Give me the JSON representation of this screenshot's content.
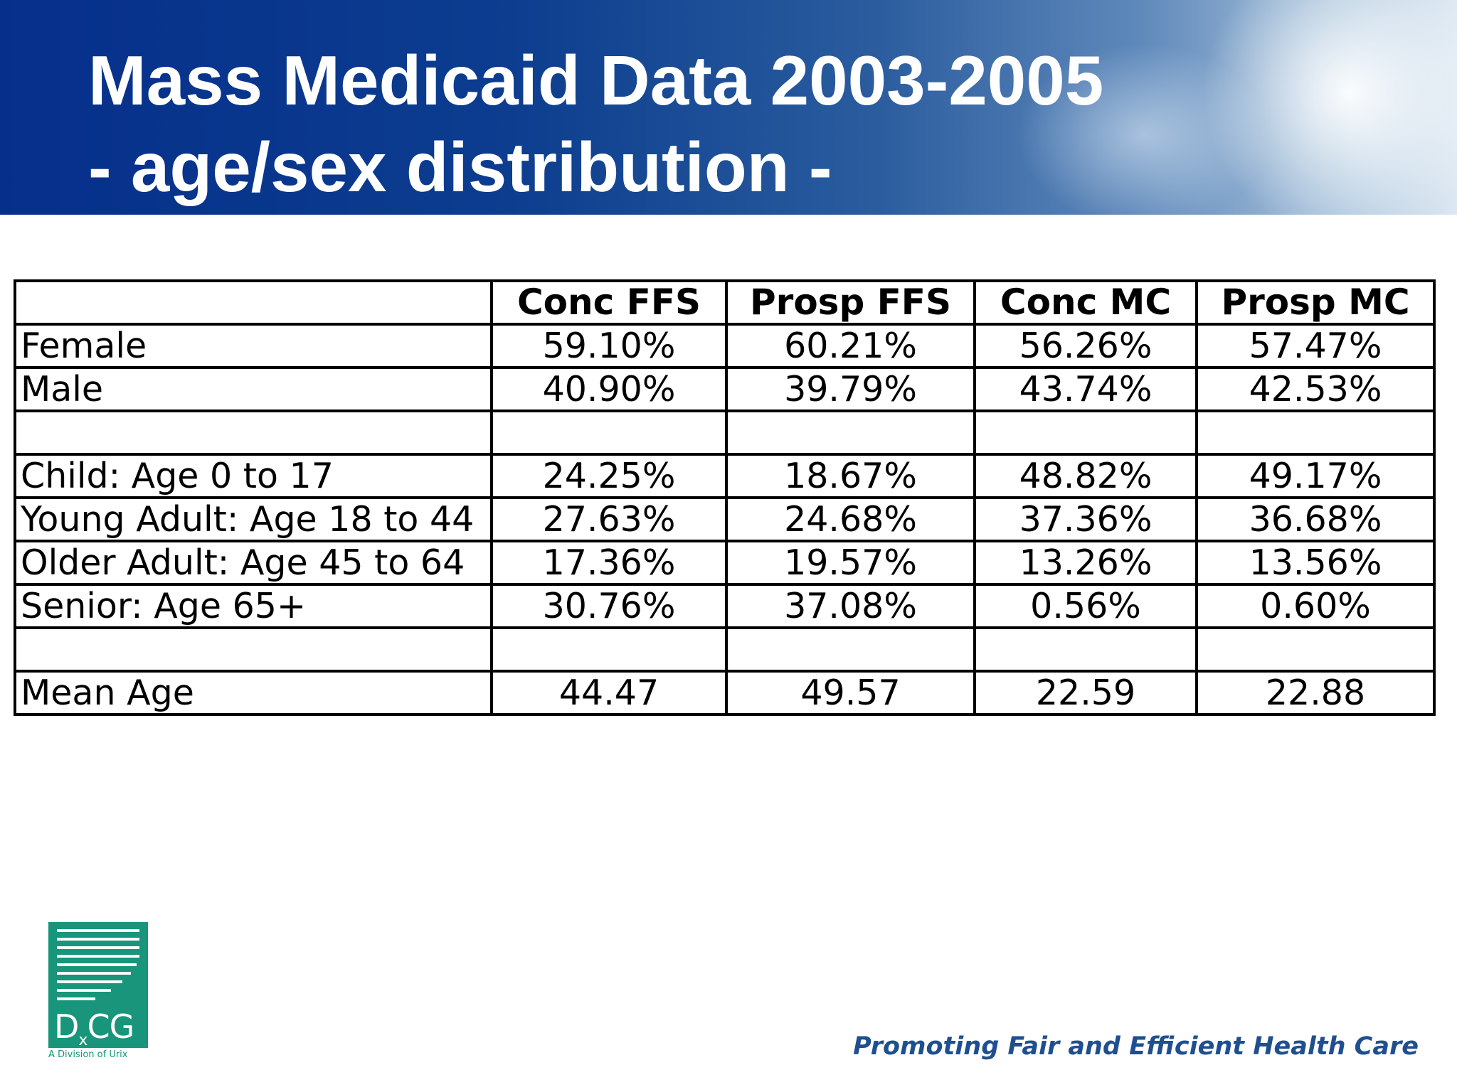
{
  "title": {
    "line1": "Mass Medicaid Data 2003-2005",
    "line2": "- age/sex distribution -"
  },
  "table": {
    "headers": [
      "",
      "Conc FFS",
      "Prosp FFS",
      "Conc MC",
      "Prosp MC"
    ],
    "rows": [
      {
        "label": "Female",
        "values": [
          "59.10%",
          "60.21%",
          "56.26%",
          "57.47%"
        ]
      },
      {
        "label": "Male",
        "values": [
          "40.90%",
          "39.79%",
          "43.74%",
          "42.53%"
        ]
      },
      {
        "label": "",
        "values": [
          "",
          "",
          "",
          ""
        ]
      },
      {
        "label": "Child: Age 0 to 17",
        "values": [
          "24.25%",
          "18.67%",
          "48.82%",
          "49.17%"
        ]
      },
      {
        "label": "Young Adult: Age 18 to 44",
        "values": [
          "27.63%",
          "24.68%",
          "37.36%",
          "36.68%"
        ]
      },
      {
        "label": "Older Adult: Age 45 to 64",
        "values": [
          "17.36%",
          "19.57%",
          "13.26%",
          "13.56%"
        ]
      },
      {
        "label": "Senior: Age 65+",
        "values": [
          "30.76%",
          "37.08%",
          "0.56%",
          "0.60%"
        ]
      },
      {
        "label": "",
        "values": [
          "",
          "",
          "",
          ""
        ]
      },
      {
        "label": "Mean Age",
        "values": [
          "44.47",
          "49.57",
          "22.59",
          "22.88"
        ]
      }
    ]
  },
  "logo": {
    "name": "DxCG",
    "subtitle": "A Division of Urix",
    "color": "#18957a"
  },
  "tagline": "Promoting Fair and Efficient Health Care",
  "colors": {
    "header_blue": "#0c3d8f",
    "tagline_blue": "#1f4f8f"
  }
}
